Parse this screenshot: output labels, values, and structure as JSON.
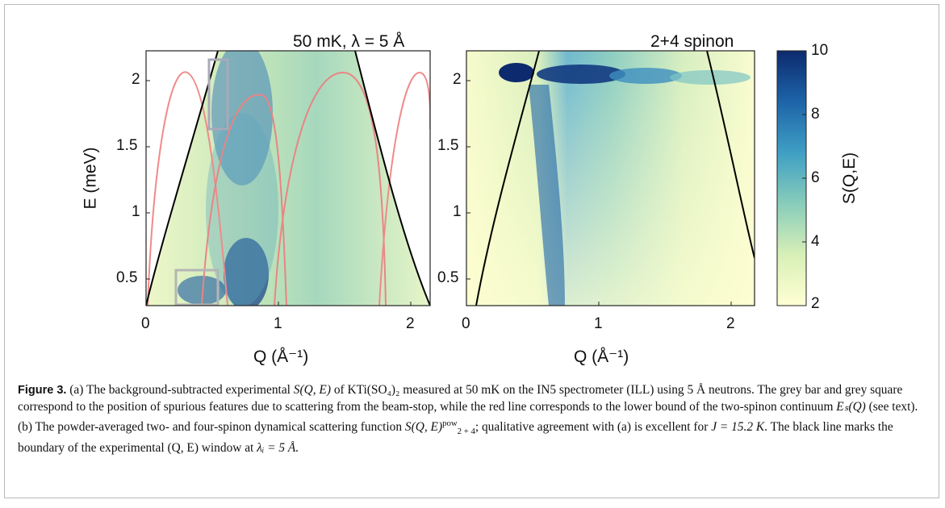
{
  "figure": {
    "left_panel": {
      "title": "50 mK, λ = 5 Å",
      "yticks": [
        "2",
        "1.5",
        "1",
        "0.5"
      ],
      "xticks": [
        "0",
        "1",
        "2"
      ],
      "ylabel": "E (meV)",
      "xlabel": "Q (Å⁻¹)"
    },
    "right_panel": {
      "title": "2+4 spinon",
      "yticks": [
        "2",
        "1.5",
        "1",
        "0.5"
      ],
      "xticks": [
        "0",
        "1",
        "2"
      ],
      "xlabel": "Q (Å⁻¹)"
    },
    "colorbar": {
      "ticks": [
        "10",
        "8",
        "6",
        "4",
        "2"
      ],
      "label": "S(Q,E)",
      "colors": [
        "#ffffd4",
        "#d8efb7",
        "#88cdbb",
        "#3f9fc4",
        "#1d64a8",
        "#0d2a6e"
      ]
    }
  },
  "caption": {
    "label": "Figure 3.",
    "text_a": "(a) The background-subtracted experimental",
    "sqe": "S(Q, E)",
    "of": "of",
    "compound": "KTi(SO₄)₂",
    "text_b": "measured at 50 mK on the IN5 spectrometer (ILL) using 5 Å neutrons. The grey bar and grey square correspond to the position of spurious features due to scattering from the beam-stop, while the red line corresponds to the lower bound of the two-spinon continuum",
    "es": "Eₛ(Q)",
    "text_c": "(see text). (b) The powder-averaged two- and four-spinon dynamical scattering function",
    "sqe_pow": "S(Q, E)",
    "pow_sup": "pow",
    "pow_sub": "2 + 4",
    "text_d": "; qualitative agreement with (a) is excellent for",
    "j_value": "J = 15.2 K",
    "text_e": ". The black line marks the boundary of the experimental (Q, E) window at",
    "lambda": "λᵢ = 5 Å."
  }
}
